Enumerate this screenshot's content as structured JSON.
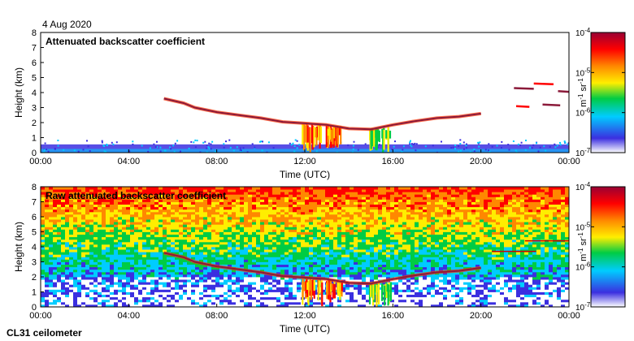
{
  "date": "4 Aug 2020",
  "footer": "CL31 ceilometer",
  "colors": {
    "colormap": [
      "#ffffff",
      "#3b2fe0",
      "#00ccff",
      "#00cc44",
      "#ffee00",
      "#ff8800",
      "#ff0000",
      "#990033"
    ],
    "layer": "#8b1a3a"
  },
  "chart_data": [
    {
      "type": "heatmap",
      "title": "Attenuated backscatter coefficient",
      "xlabel": "Time (UTC)",
      "ylabel": "Height (km)",
      "x_ticks": [
        "00:00",
        "04:00",
        "08:00",
        "12:00",
        "16:00",
        "20:00",
        "00:00"
      ],
      "x_tick_hours": [
        0,
        4,
        8,
        12,
        16,
        20,
        24
      ],
      "xlim": [
        0,
        24
      ],
      "y_ticks": [
        0,
        1,
        2,
        3,
        4,
        5,
        6,
        7,
        8
      ],
      "ylim": [
        0,
        8
      ],
      "colorbar": {
        "label_base": "m",
        "label_exp1": "-1",
        "label_mid": " sr",
        "label_exp2": "-1",
        "ticks": [
          {
            "base": "10",
            "exp": "-4",
            "value": 0.0001
          },
          {
            "base": "10",
            "exp": "-5",
            "value": 1e-05
          },
          {
            "base": "10",
            "exp": "-6",
            "value": 1e-06
          },
          {
            "base": "10",
            "exp": "-7",
            "value": 1e-07
          }
        ]
      },
      "layer_km": [
        [
          5.6,
          3.6
        ],
        [
          6.5,
          3.3
        ],
        [
          7,
          3.0
        ],
        [
          8,
          2.7
        ],
        [
          9,
          2.5
        ],
        [
          10,
          2.3
        ],
        [
          11,
          2.05
        ],
        [
          12,
          1.95
        ],
        [
          13,
          1.85
        ],
        [
          14,
          1.6
        ],
        [
          15,
          1.55
        ],
        [
          16,
          1.85
        ],
        [
          17,
          2.1
        ],
        [
          18,
          2.3
        ],
        [
          19,
          2.4
        ],
        [
          20,
          2.6
        ]
      ],
      "noisy": false
    },
    {
      "type": "heatmap",
      "title": "Raw attenuated backscatter coefficient",
      "xlabel": "Time (UTC)",
      "ylabel": "Height (km)",
      "x_ticks": [
        "00:00",
        "04:00",
        "08:00",
        "12:00",
        "16:00",
        "20:00",
        "00:00"
      ],
      "x_tick_hours": [
        0,
        4,
        8,
        12,
        16,
        20,
        24
      ],
      "xlim": [
        0,
        24
      ],
      "y_ticks": [
        0,
        1,
        2,
        3,
        4,
        5,
        6,
        7,
        8
      ],
      "ylim": [
        0,
        8
      ],
      "colorbar": {
        "label_base": "m",
        "label_exp1": "-1",
        "label_mid": " sr",
        "label_exp2": "-1",
        "ticks": [
          {
            "base": "10",
            "exp": "-4",
            "value": 0.0001
          },
          {
            "base": "10",
            "exp": "-5",
            "value": 1e-05
          },
          {
            "base": "10",
            "exp": "-6",
            "value": 1e-06
          },
          {
            "base": "10",
            "exp": "-7",
            "value": 1e-07
          }
        ]
      },
      "layer_km": [
        [
          5.6,
          3.6
        ],
        [
          6.5,
          3.3
        ],
        [
          7,
          3.0
        ],
        [
          8,
          2.7
        ],
        [
          9,
          2.5
        ],
        [
          10,
          2.3
        ],
        [
          11,
          2.05
        ],
        [
          12,
          1.95
        ],
        [
          13,
          1.85
        ],
        [
          14,
          1.6
        ],
        [
          15,
          1.55
        ],
        [
          16,
          1.85
        ],
        [
          17,
          2.1
        ],
        [
          18,
          2.3
        ],
        [
          19,
          2.4
        ],
        [
          20,
          2.6
        ]
      ],
      "noisy": true
    }
  ]
}
